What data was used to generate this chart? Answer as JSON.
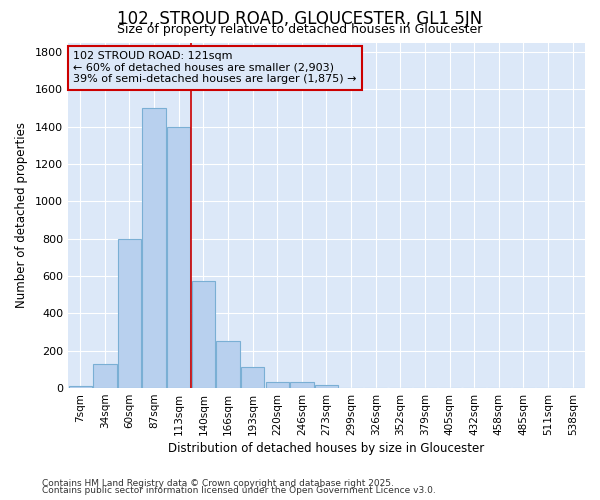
{
  "title1": "102, STROUD ROAD, GLOUCESTER, GL1 5JN",
  "title2": "Size of property relative to detached houses in Gloucester",
  "xlabel": "Distribution of detached houses by size in Gloucester",
  "ylabel": "Number of detached properties",
  "categories": [
    "7sqm",
    "34sqm",
    "60sqm",
    "87sqm",
    "113sqm",
    "140sqm",
    "166sqm",
    "193sqm",
    "220sqm",
    "246sqm",
    "273sqm",
    "299sqm",
    "326sqm",
    "352sqm",
    "379sqm",
    "405sqm",
    "432sqm",
    "458sqm",
    "485sqm",
    "511sqm",
    "538sqm"
  ],
  "values": [
    10,
    130,
    800,
    1500,
    1400,
    575,
    250,
    115,
    35,
    30,
    15,
    0,
    0,
    0,
    0,
    0,
    0,
    0,
    0,
    0,
    0
  ],
  "bar_color": "#b8d0ee",
  "bar_edge_color": "#7aafd4",
  "plot_bg_color": "#dce8f8",
  "fig_bg_color": "#ffffff",
  "grid_color": "#ffffff",
  "annotation_line1": "102 STROUD ROAD: 121sqm",
  "annotation_line2": "← 60% of detached houses are smaller (2,903)",
  "annotation_line3": "39% of semi-detached houses are larger (1,875) →",
  "vline_position": 4.5,
  "annotation_box_color": "#cc0000",
  "ylim": [
    0,
    1850
  ],
  "yticks": [
    0,
    200,
    400,
    600,
    800,
    1000,
    1200,
    1400,
    1600,
    1800
  ],
  "footer1": "Contains HM Land Registry data © Crown copyright and database right 2025.",
  "footer2": "Contains public sector information licensed under the Open Government Licence v3.0."
}
